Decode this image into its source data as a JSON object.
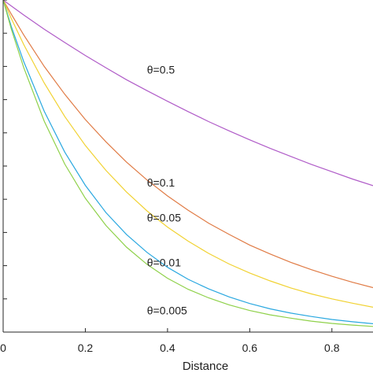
{
  "chart_data": {
    "type": "line",
    "xlabel": "Distance",
    "ylabel": "",
    "title": "",
    "xlim": [
      0,
      0.9
    ],
    "ylim": [
      0,
      1
    ],
    "grid": false,
    "legend": "none",
    "x_ticks": [
      0,
      0.2,
      0.4,
      0.6,
      0.8
    ],
    "x_tick_labels": [
      "0",
      "0.2",
      "0.4",
      "0.6",
      "0.8"
    ],
    "y_ticks": [
      0.1,
      0.2,
      0.3,
      0.4,
      0.5,
      0.6,
      0.7,
      0.8,
      0.9,
      1.0
    ],
    "x": [
      0,
      0.02,
      0.05,
      0.1,
      0.15,
      0.2,
      0.25,
      0.3,
      0.35,
      0.4,
      0.45,
      0.5,
      0.55,
      0.6,
      0.65,
      0.7,
      0.75,
      0.8,
      0.85,
      0.9
    ],
    "series": [
      {
        "name": "θ=0.5",
        "label_at": [
          0.35,
          0.79
        ],
        "color": "#b05cc8",
        "values": [
          1.0,
          0.982,
          0.955,
          0.912,
          0.872,
          0.833,
          0.796,
          0.76,
          0.727,
          0.695,
          0.664,
          0.634,
          0.606,
          0.579,
          0.553,
          0.529,
          0.505,
          0.483,
          0.461,
          0.441
        ]
      },
      {
        "name": "θ=0.1",
        "label_at": [
          0.35,
          0.45
        ],
        "color": "#e07b45",
        "values": [
          1.0,
          0.957,
          0.895,
          0.8,
          0.716,
          0.64,
          0.573,
          0.512,
          0.458,
          0.41,
          0.367,
          0.328,
          0.294,
          0.262,
          0.235,
          0.21,
          0.188,
          0.168,
          0.15,
          0.134
        ]
      },
      {
        "name": "θ=0.05",
        "label_at": [
          0.35,
          0.345
        ],
        "color": "#f1d232",
        "values": [
          1.0,
          0.944,
          0.866,
          0.75,
          0.649,
          0.562,
          0.487,
          0.422,
          0.365,
          0.316,
          0.274,
          0.237,
          0.205,
          0.178,
          0.154,
          0.133,
          0.115,
          0.1,
          0.087,
          0.075
        ]
      },
      {
        "name": "θ=0.01",
        "label_at": [
          0.35,
          0.21
        ],
        "color": "#2aa8e0",
        "values": [
          1.0,
          0.92,
          0.815,
          0.665,
          0.542,
          0.442,
          0.36,
          0.294,
          0.24,
          0.195,
          0.159,
          0.13,
          0.106,
          0.086,
          0.07,
          0.057,
          0.047,
          0.038,
          0.031,
          0.025
        ]
      },
      {
        "name": "θ=0.005",
        "label_at": [
          0.35,
          0.065
        ],
        "color": "#8fd14a",
        "values": [
          1.0,
          0.912,
          0.797,
          0.635,
          0.506,
          0.403,
          0.321,
          0.256,
          0.204,
          0.162,
          0.129,
          0.103,
          0.082,
          0.065,
          0.052,
          0.042,
          0.033,
          0.026,
          0.021,
          0.017
        ]
      }
    ]
  }
}
